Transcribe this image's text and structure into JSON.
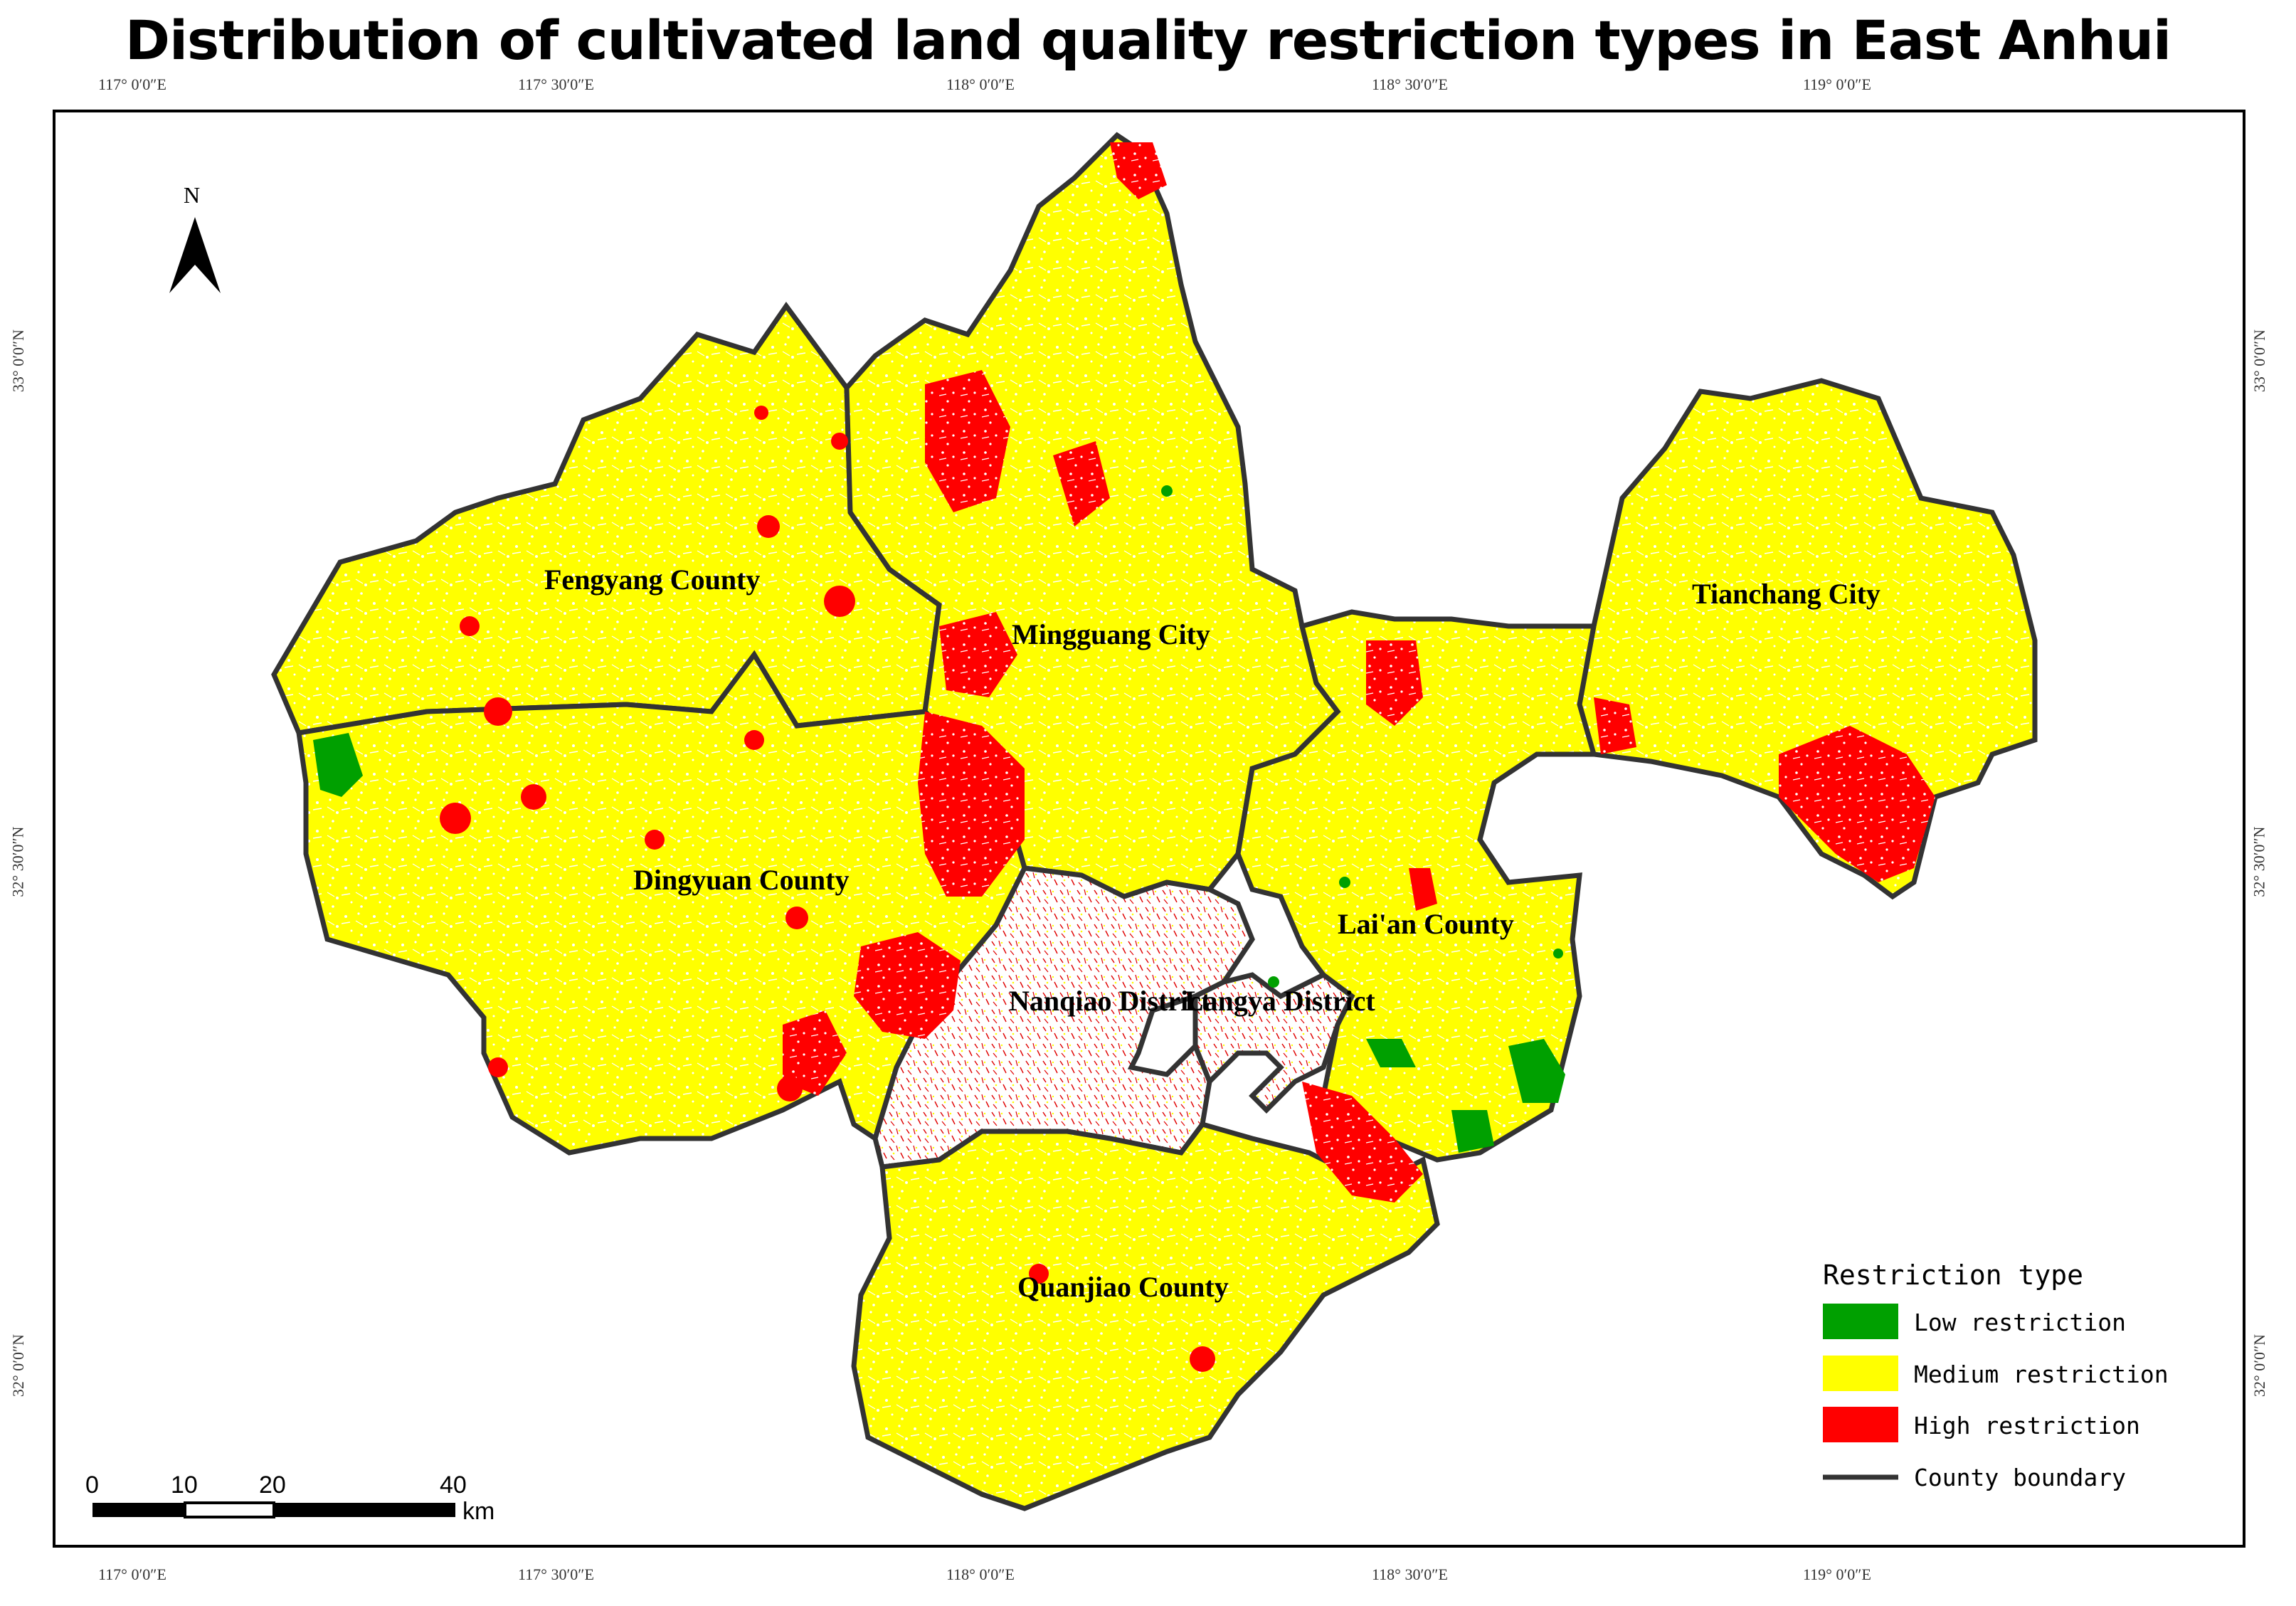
{
  "title": "Distribution of cultivated land quality restriction types in East Anhui",
  "longitude_ticks": [
    "117° 0′0″E",
    "117° 30′0″E",
    "118° 0′0″E",
    "118° 30′0″E",
    "119° 0′0″E"
  ],
  "latitude_ticks": [
    "33° 0′0″N",
    "32° 30′0″N",
    "32° 0′0″N"
  ],
  "north_arrow": {
    "label": "N",
    "icon": "north-arrow-icon"
  },
  "counties": [
    {
      "name": "Fengyang County"
    },
    {
      "name": "Mingguang City"
    },
    {
      "name": "Tianchang City"
    },
    {
      "name": "Dingyuan County"
    },
    {
      "name": "Lai'an County"
    },
    {
      "name": "Nanqiao District"
    },
    {
      "name": "Langya District"
    },
    {
      "name": "Quanjiao County"
    }
  ],
  "legend": {
    "title": "Restriction type",
    "items": [
      {
        "label": "Low restriction",
        "color": "#00a000"
      },
      {
        "label": "Medium restriction",
        "color": "#ffff00"
      },
      {
        "label": "High restriction",
        "color": "#ff0000"
      },
      {
        "label": "County boundary",
        "color": "#333333"
      }
    ]
  },
  "scale_bar": {
    "ticks": [
      "0",
      "10",
      "20",
      "40"
    ],
    "unit": "km"
  }
}
